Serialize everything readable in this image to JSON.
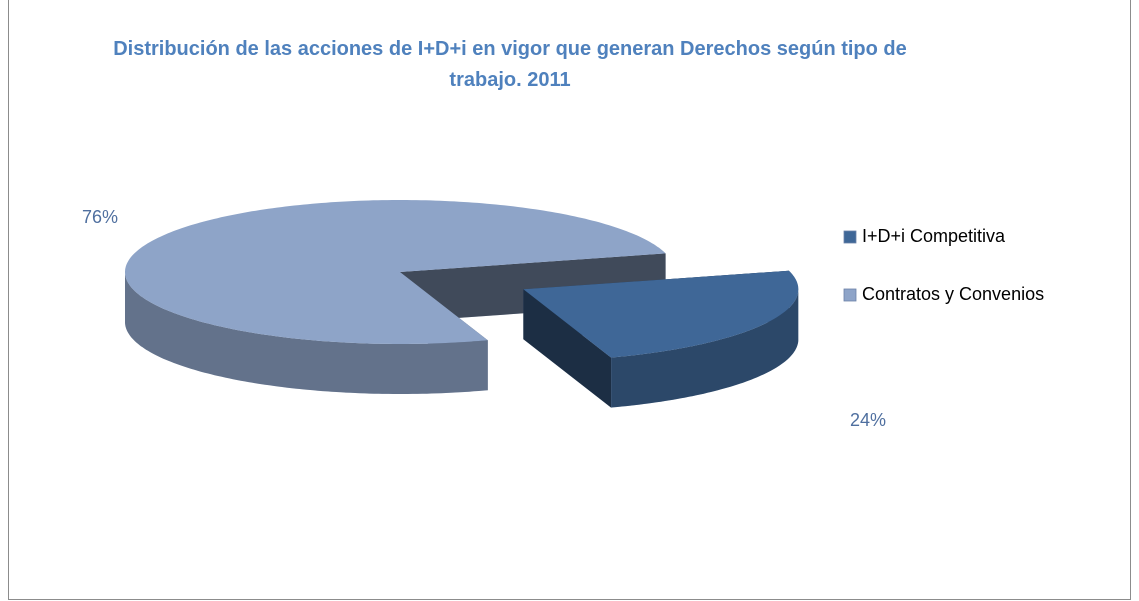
{
  "chart_data": {
    "type": "pie",
    "title": "Distribución de las acciones de I+D+i  en vigor que generan Derechos según tipo de trabajo. 2011",
    "categories": [
      "I+D+i Competitiva",
      "Contratos y Convenios"
    ],
    "values": [
      24,
      76
    ],
    "value_labels": [
      "24%",
      "76%"
    ],
    "colors": [
      "#3f6797",
      "#8ea4c8"
    ],
    "legend": "right"
  }
}
